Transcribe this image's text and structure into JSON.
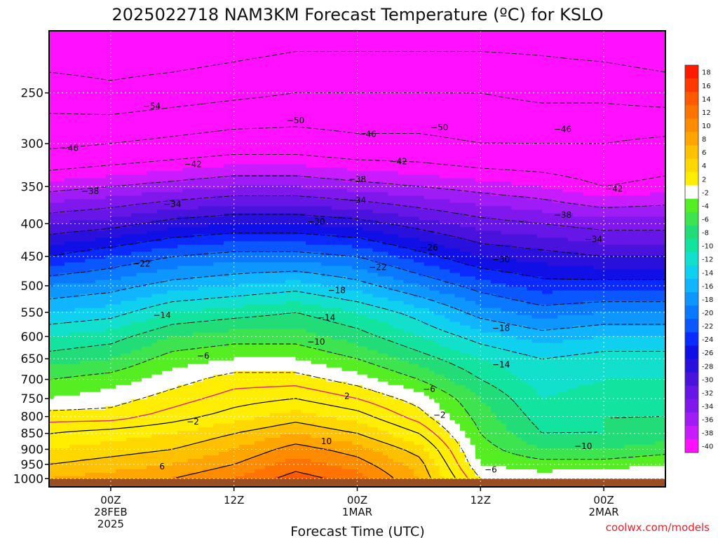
{
  "chart_data": {
    "type": "heatmap",
    "title": "2025022718 NAM3KM Forecast Temperature (ºC) for KSLO",
    "xlabel": "Forecast Time (UTC)",
    "ylabel": "",
    "y_scale": "log",
    "y_range": [
      200,
      1030
    ],
    "y_ticks": [
      250,
      300,
      350,
      400,
      450,
      500,
      550,
      600,
      650,
      700,
      750,
      800,
      850,
      900,
      950,
      1000
    ],
    "x_range_hours": [
      -6,
      54
    ],
    "x_ticks": [
      {
        "hour": 0,
        "lines": [
          "00Z",
          "28FEB",
          "2025"
        ]
      },
      {
        "hour": 12,
        "lines": [
          "12Z"
        ]
      },
      {
        "hour": 24,
        "lines": [
          "00Z",
          "1MAR"
        ]
      },
      {
        "hour": 36,
        "lines": [
          "12Z"
        ]
      },
      {
        "hour": 48,
        "lines": [
          "00Z",
          "2MAR"
        ]
      }
    ],
    "grid": true,
    "colorbar": {
      "placement": "right",
      "levels": [
        18,
        16,
        14,
        12,
        10,
        8,
        6,
        4,
        2,
        -2,
        -4,
        -6,
        -8,
        -10,
        -12,
        -14,
        -16,
        -18,
        -20,
        -22,
        -24,
        -26,
        -28,
        -30,
        -32,
        -34,
        -36,
        -38,
        -40
      ],
      "colors": [
        "#ff1a00",
        "#ff3a00",
        "#ff5a00",
        "#ff7400",
        "#ff8c00",
        "#ffa500",
        "#ffc000",
        "#ffd800",
        "#ffee00",
        "#ffffff",
        "#55ee22",
        "#3ee450",
        "#22dd77",
        "#12e4a0",
        "#12dfcc",
        "#10d0f0",
        "#10b4ff",
        "#0e96ff",
        "#0a78ff",
        "#0a56ff",
        "#0a2aff",
        "#1010e6",
        "#2a10dd",
        "#4a12dd",
        "#6616e6",
        "#8018ee",
        "#a01cf6",
        "#c81cff",
        "#ff10ff"
      ]
    },
    "profile_hours": [
      -6,
      0,
      6,
      12,
      18,
      24,
      30,
      36,
      42,
      48,
      54
    ],
    "profile_pressures": [
      200,
      250,
      300,
      350,
      400,
      450,
      500,
      550,
      600,
      650,
      700,
      750,
      800,
      850,
      900,
      950,
      1000,
      1030
    ],
    "temperature_profiles": [
      [
        -58,
        -52,
        -47,
        -39,
        -32,
        -26,
        -20,
        -16,
        -12,
        -9,
        -6,
        -4,
        -1,
        2,
        4,
        6,
        8,
        9
      ],
      [
        -58,
        -53,
        -46,
        -38,
        -31,
        -24,
        -19,
        -15,
        -11,
        -8,
        -5,
        -3,
        -1,
        3,
        5,
        7,
        9,
        10
      ],
      [
        -58,
        -52,
        -45,
        -37,
        -29,
        -22,
        -17,
        -12,
        -8,
        -5,
        -3,
        -1,
        1,
        4,
        6,
        8,
        10,
        11
      ],
      [
        -57,
        -51,
        -44,
        -36,
        -28,
        -21,
        -16,
        -11,
        -7,
        -4,
        -1,
        1,
        3,
        6,
        8,
        10,
        12,
        12
      ],
      [
        -56,
        -50,
        -44,
        -36,
        -28,
        -21,
        -15,
        -10,
        -7,
        -4,
        -1,
        2,
        5,
        8,
        11,
        13,
        15,
        15
      ],
      [
        -56,
        -50,
        -45,
        -37,
        -29,
        -22,
        -17,
        -12,
        -9,
        -6,
        -3,
        0,
        3,
        6,
        9,
        11,
        13,
        13
      ],
      [
        -56,
        -50,
        -45,
        -38,
        -31,
        -25,
        -20,
        -15,
        -12,
        -9,
        -6,
        -3,
        -1,
        2,
        5,
        7,
        8,
        8
      ],
      [
        -56,
        -50,
        -46,
        -39,
        -33,
        -28,
        -23,
        -19,
        -15,
        -12,
        -10,
        -8,
        -7,
        -6,
        -5,
        -4,
        -2,
        -1
      ],
      [
        -56,
        -51,
        -46,
        -40,
        -34,
        -29,
        -25,
        -21,
        -17,
        -14,
        -13,
        -12,
        -11,
        -10,
        -8,
        -5,
        -3,
        -2
      ],
      [
        -57,
        -51,
        -46,
        -42,
        -35,
        -30,
        -25,
        -20,
        -16,
        -13,
        -12,
        -11,
        -10,
        -10,
        -8,
        -5,
        -2,
        -1
      ],
      [
        -58,
        -52,
        -45,
        -41,
        -35,
        -30,
        -25,
        -20,
        -16,
        -13,
        -12,
        -11,
        -10,
        -9,
        -7,
        -4,
        -2,
        -1
      ]
    ],
    "contour_labels": [
      {
        "text": "−54",
        "hour": 4,
        "p": 262
      },
      {
        "text": "−50",
        "hour": 18,
        "p": 276
      },
      {
        "text": "−50",
        "hour": 32,
        "p": 283
      },
      {
        "text": "−46",
        "hour": 25,
        "p": 290
      },
      {
        "text": "−46",
        "hour": 44,
        "p": 285
      },
      {
        "text": "−46",
        "hour": -4,
        "p": 305
      },
      {
        "text": "−42",
        "hour": 8,
        "p": 323
      },
      {
        "text": "−42",
        "hour": 28,
        "p": 320
      },
      {
        "text": "−42",
        "hour": 49,
        "p": 353
      },
      {
        "text": "−38",
        "hour": 24,
        "p": 341
      },
      {
        "text": "−38",
        "hour": -2,
        "p": 356
      },
      {
        "text": "−38",
        "hour": 44,
        "p": 388
      },
      {
        "text": "−34",
        "hour": 6,
        "p": 373
      },
      {
        "text": "−34",
        "hour": 24,
        "p": 368
      },
      {
        "text": "−34",
        "hour": 47,
        "p": 423
      },
      {
        "text": "−30",
        "hour": 20,
        "p": 397
      },
      {
        "text": "−30",
        "hour": 38,
        "p": 455
      },
      {
        "text": "−26",
        "hour": 31,
        "p": 436
      },
      {
        "text": "−22",
        "hour": 3,
        "p": 462
      },
      {
        "text": "−22",
        "hour": 26,
        "p": 468
      },
      {
        "text": "−18",
        "hour": 22,
        "p": 508
      },
      {
        "text": "−18",
        "hour": 38,
        "p": 582
      },
      {
        "text": "−14",
        "hour": 5,
        "p": 556
      },
      {
        "text": "−14",
        "hour": 21,
        "p": 561
      },
      {
        "text": "−14",
        "hour": 38,
        "p": 664
      },
      {
        "text": "−10",
        "hour": 20,
        "p": 612
      },
      {
        "text": "−10",
        "hour": 46,
        "p": 890
      },
      {
        "text": "−6",
        "hour": 9,
        "p": 643
      },
      {
        "text": "−6",
        "hour": 31,
        "p": 725
      },
      {
        "text": "−6",
        "hour": 37,
        "p": 968
      },
      {
        "text": "−2",
        "hour": 32,
        "p": 796
      },
      {
        "text": "−2",
        "hour": 8,
        "p": 815
      },
      {
        "text": "2",
        "hour": 23,
        "p": 743
      },
      {
        "text": "10",
        "hour": 21,
        "p": 874
      },
      {
        "text": "6",
        "hour": 5,
        "p": 957
      }
    ],
    "ground_color": "#9a4f23"
  },
  "footer": {
    "credit": "coolwx.com/models"
  }
}
